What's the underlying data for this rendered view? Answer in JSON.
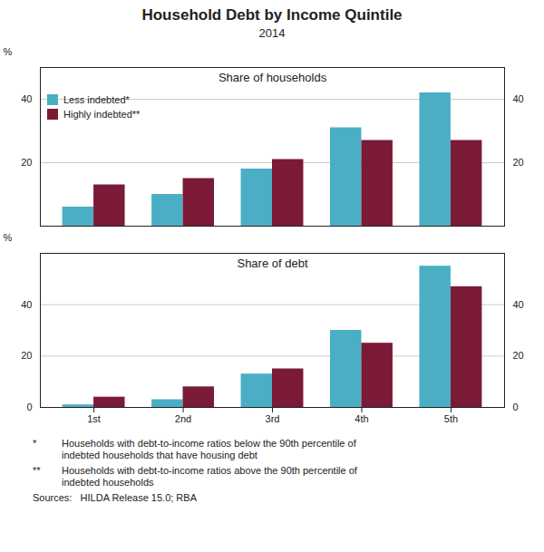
{
  "title": "Household Debt by Income Quintile",
  "subtitle": "2014",
  "annotations": [
    "*",
    "Households with debt-to-income ratios below the 90th percentile of\nindebted households that have housing debt",
    "**",
    "Households with debt-to-income ratios above the 90th percentile of\nindebted households",
    "Sources:   HILDA Release 15.0; RBA"
  ],
  "chart_data": [
    {
      "type": "bar",
      "title": "Share of households",
      "categories": [
        "1st",
        "2nd",
        "3rd",
        "4th",
        "5th"
      ],
      "series": [
        {
          "name": "Less indebted*",
          "color": "#4AAFC5",
          "values": [
            6,
            10,
            18,
            31,
            42
          ]
        },
        {
          "name": "Highly indebted**",
          "color": "#7B1A36",
          "values": [
            13,
            15,
            21,
            27,
            27
          ]
        }
      ],
      "ylim": [
        0,
        50
      ],
      "yticks": [
        20,
        40
      ],
      "ylabel": "%",
      "y2lim": [
        0,
        50
      ],
      "y2ticks": [
        20,
        40
      ],
      "y2label": "%",
      "grid": true,
      "legend": "upper left",
      "tick_labels": "y"
    },
    {
      "type": "bar",
      "title": "Share of debt",
      "categories": [
        "1st",
        "2nd",
        "3rd",
        "4th",
        "5th"
      ],
      "series": [
        {
          "name": "Less indebted*",
          "color": "#4AAFC5",
          "values": [
            1,
            3,
            13,
            30,
            55
          ]
        },
        {
          "name": "Highly indebted**",
          "color": "#7B1A36",
          "values": [
            4,
            8,
            15,
            25,
            47
          ]
        }
      ],
      "ylim": [
        0,
        60
      ],
      "yticks": [
        0,
        20,
        40
      ],
      "ylabel": "%",
      "y2lim": [
        0,
        60
      ],
      "y2ticks": [
        0,
        20,
        40
      ],
      "y2label": "%",
      "grid": true
    }
  ]
}
